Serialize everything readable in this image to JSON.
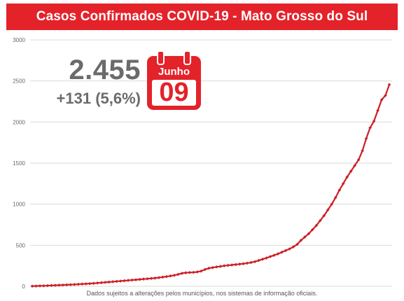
{
  "header": {
    "title": "Casos Confirmados COVID-19 - Mato Grosso do Sul"
  },
  "highlight": {
    "total": "2.455",
    "increase": "+131 (5,6%)",
    "calendar_month": "Junho",
    "calendar_day": "09"
  },
  "footnote": "Dados sujeitos a alterações pelos municípios, nos sistemas de informação oficiais.",
  "colors": {
    "accent": "#e4222a",
    "line": "#cc1f26",
    "grid": "#d9d9d9",
    "text_gray": "#6b6b6b"
  },
  "icons": [
    "calendar-icon"
  ],
  "chart_data": {
    "type": "line",
    "title": "Casos Confirmados COVID-19 - Mato Grosso do Sul",
    "xlabel": "",
    "ylabel": "",
    "ylim": [
      0,
      3000
    ],
    "yticks": [
      0,
      500,
      1000,
      1500,
      2000,
      2500,
      3000
    ],
    "ytick_labels": [
      "0",
      "500",
      "1000",
      "1500",
      "2000",
      "2500",
      "3000"
    ],
    "grid": true,
    "legend": "none",
    "series": [
      {
        "values": [
          2,
          3,
          5,
          6,
          8,
          10,
          12,
          14,
          16,
          18,
          20,
          22,
          25,
          28,
          30,
          33,
          36,
          40,
          44,
          48,
          52,
          56,
          60,
          64,
          68,
          72,
          76,
          80,
          84,
          88,
          92,
          96,
          100,
          106,
          112,
          118,
          126,
          134,
          145,
          158,
          165,
          168,
          170,
          175,
          185,
          205,
          220,
          228,
          236,
          242,
          250,
          255,
          260,
          265,
          270,
          275,
          282,
          290,
          300,
          315,
          330,
          345,
          362,
          378,
          395,
          415,
          435,
          455,
          480,
          510,
          560,
          600,
          640,
          690,
          740,
          800,
          860,
          930,
          1000,
          1080,
          1170,
          1250,
          1330,
          1400,
          1470,
          1540,
          1650,
          1800,
          1930,
          2010,
          2140,
          2270,
          2324,
          2455
        ]
      }
    ]
  }
}
